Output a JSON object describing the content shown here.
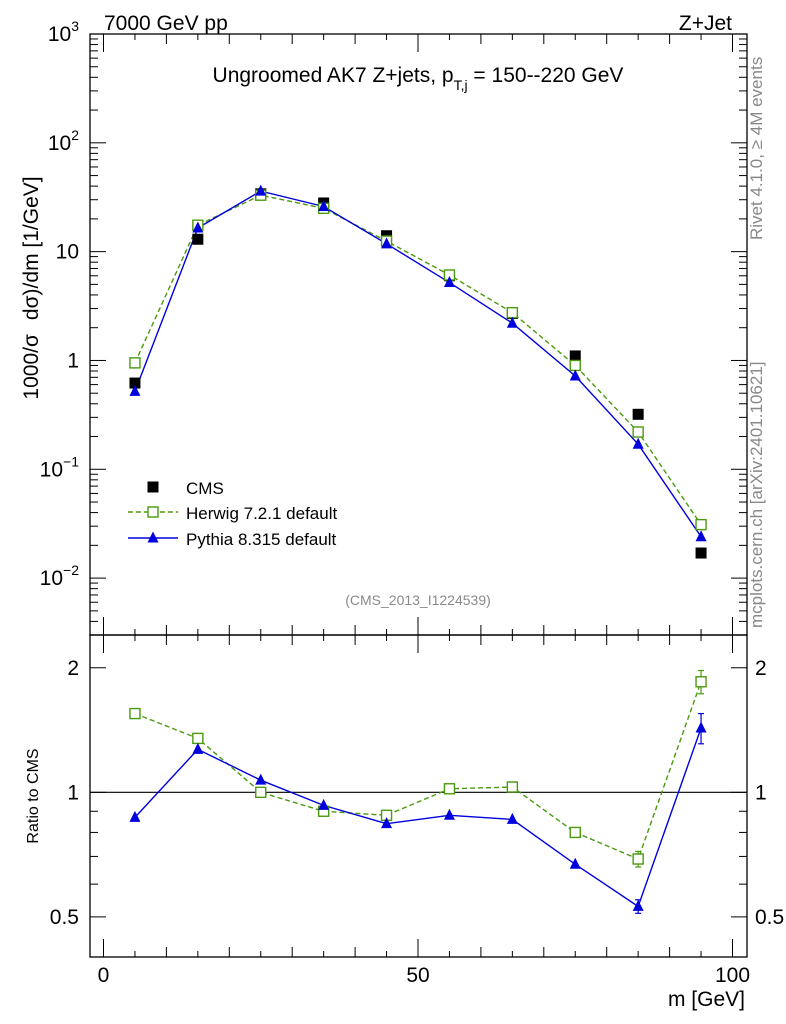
{
  "header": {
    "left": "7000 GeV pp",
    "right": "Z+Jet"
  },
  "side_labels": {
    "top": "Rivet 4.1.0, ≥ 4M events",
    "bottom": "mcplots.cern.ch [arXiv:2401.10621]"
  },
  "colors": {
    "cms": "#000000",
    "herwig": "#4a9a0f",
    "pythia": "#0000dd",
    "axis": "#000000",
    "watermark": "#8a8a8a"
  },
  "chart_data": [
    {
      "type": "scatter",
      "title": "Ungroomed AK7 Z+jets, p_T,j = 150--220 GeV",
      "title_parts": {
        "before_sub": "Ungroomed AK7 Z+jets, p",
        "subscript": "T,j",
        "after_sub": " = 150--220 GeV"
      },
      "ylabel": "1000/σ  dσ)/dm [1/GeV]",
      "ylabel_parts": {
        "before": "1000/σ",
        "middle": "dσ",
        "after": ")/dm [1/GeV]"
      },
      "xlabel": "m [GeV]",
      "yscale": "log",
      "xlim": [
        0,
        100
      ],
      "ylim": [
        0.003,
        1000
      ],
      "watermark": "(CMS_2013_I1224539)",
      "x_ticks": [
        0,
        50,
        100
      ],
      "y_ticks": [
        {
          "value": 1000,
          "base": "10",
          "exp": "3"
        },
        {
          "value": 100,
          "base": "10",
          "exp": "2"
        },
        {
          "value": 10,
          "base": "10",
          "exp": ""
        },
        {
          "value": 1,
          "base": "1",
          "exp": ""
        },
        {
          "value": 0.1,
          "base": "10",
          "exp": "−1"
        },
        {
          "value": 0.01,
          "base": "10",
          "exp": "−2"
        }
      ],
      "x": [
        5,
        15,
        25,
        35,
        45,
        55,
        65,
        75,
        85,
        95
      ],
      "legend_position": "lower-left",
      "series": [
        {
          "name": "CMS",
          "style": "square",
          "values": [
            0.62,
            13.0,
            34.0,
            28.0,
            14.0,
            6.0,
            2.7,
            1.1,
            0.32,
            0.017
          ]
        },
        {
          "name": "Herwig 7.2.1 default",
          "style": "open-square-dashed",
          "values": [
            0.95,
            17.5,
            33.0,
            25.0,
            12.5,
            6.1,
            2.75,
            0.9,
            0.22,
            0.031
          ]
        },
        {
          "name": "Pythia 8.315 default",
          "style": "triangle-solid",
          "values": [
            0.52,
            16.5,
            36.0,
            26.0,
            11.8,
            5.2,
            2.2,
            0.72,
            0.17,
            0.024
          ]
        }
      ]
    },
    {
      "type": "line",
      "ylabel": "Ratio to CMS",
      "xlabel": "m [GeV]",
      "yscale": "log",
      "xlim": [
        0,
        100
      ],
      "ylim": [
        0.4,
        2.4
      ],
      "y_ticks": [
        {
          "value": 2,
          "label": "2"
        },
        {
          "value": 1,
          "label": "1"
        },
        {
          "value": 0.5,
          "label": "0.5"
        }
      ],
      "reference_line": 1,
      "x": [
        5,
        15,
        25,
        35,
        45,
        55,
        65,
        75,
        85,
        95
      ],
      "series": [
        {
          "name": "Herwig 7.2.1 default",
          "style": "open-square-dashed",
          "values": [
            1.55,
            1.35,
            1.0,
            0.9,
            0.88,
            1.02,
            1.03,
            0.8,
            0.69,
            1.85
          ],
          "errors": [
            0,
            0,
            0,
            0,
            0,
            0,
            0,
            0,
            0.03,
            0.12
          ]
        },
        {
          "name": "Pythia 8.315 default",
          "style": "triangle-solid",
          "values": [
            0.87,
            1.27,
            1.07,
            0.93,
            0.84,
            0.88,
            0.86,
            0.67,
            0.53,
            1.43
          ],
          "errors": [
            0,
            0,
            0,
            0,
            0,
            0,
            0,
            0,
            0.02,
            0.12
          ]
        }
      ]
    }
  ]
}
